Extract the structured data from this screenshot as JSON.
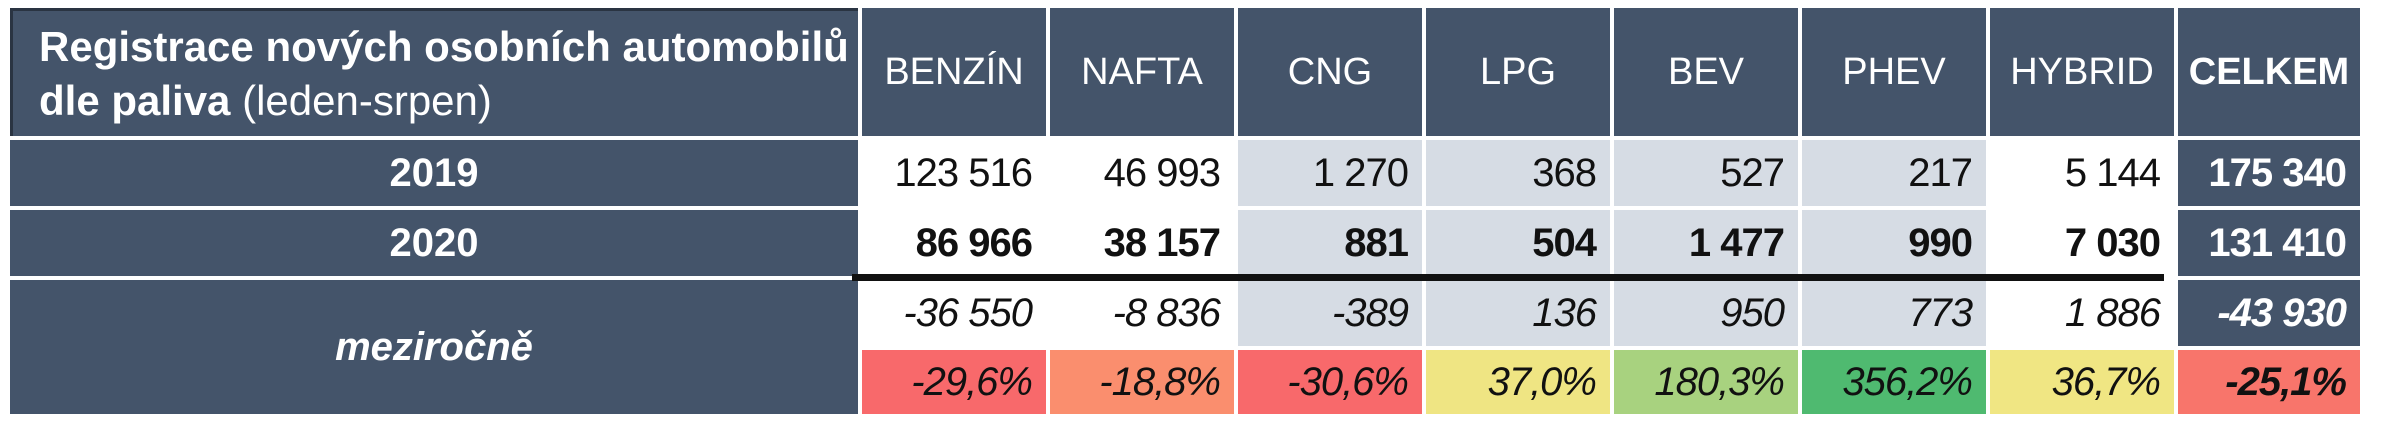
{
  "title": {
    "line1": "Registrace nových osobních automobilů",
    "line2_bold": "dle paliva",
    "line2_normal": "(leden-srpen)"
  },
  "columns": [
    "BENZÍN",
    "NAFTA",
    "CNG",
    "LPG",
    "BEV",
    "PHEV",
    "HYBRID",
    "CELKEM"
  ],
  "chart_data": {
    "type": "table",
    "title": "Registrace nových osobních automobilů dle paliva (leden-srpen)",
    "categories": [
      "BENZÍN",
      "NAFTA",
      "CNG",
      "LPG",
      "BEV",
      "PHEV",
      "HYBRID",
      "CELKEM"
    ],
    "series": [
      {
        "name": "2019",
        "values": [
          123516,
          46993,
          1270,
          368,
          527,
          217,
          5144,
          175340
        ]
      },
      {
        "name": "2020",
        "values": [
          86966,
          38157,
          881,
          504,
          1477,
          990,
          7030,
          131410
        ]
      },
      {
        "name": "meziročně (abs)",
        "values": [
          -36550,
          -8836,
          -389,
          136,
          950,
          773,
          1886,
          -43930
        ]
      },
      {
        "name": "meziročně (%)",
        "values": [
          -29.6,
          -18.8,
          -30.6,
          37.0,
          180.3,
          356.2,
          36.7,
          -25.1
        ]
      }
    ]
  },
  "rows": {
    "y2019": {
      "label": "2019",
      "values": [
        "123 516",
        "46 993",
        "1 270",
        "368",
        "527",
        "217",
        "5 144"
      ],
      "total": "175 340"
    },
    "y2020": {
      "label": "2020",
      "values": [
        "86 966",
        "38 157",
        "881",
        "504",
        "1 477",
        "990",
        "7 030"
      ],
      "total": "131 410"
    },
    "delta": {
      "label": "meziročně",
      "values": [
        "-36 550",
        "-8 836",
        "-389",
        "136",
        "950",
        "773",
        "1 886"
      ],
      "total": "-43 930"
    },
    "pct": {
      "values": [
        "-29,6%",
        "-18,8%",
        "-30,6%",
        "37,0%",
        "180,3%",
        "356,2%",
        "36,7%"
      ],
      "total": "-25,1%"
    }
  },
  "colors": {
    "header_bg": "#44546A",
    "alt_cell_bg": "#D6DCE4",
    "divider": "#111111",
    "pct_cells": [
      "#F8696B",
      "#FA8E6E",
      "#F8696B",
      "#EFE583",
      "#A8D27F",
      "#4FBA70",
      "#F0E683"
    ],
    "pct_total": "#F8756B"
  }
}
